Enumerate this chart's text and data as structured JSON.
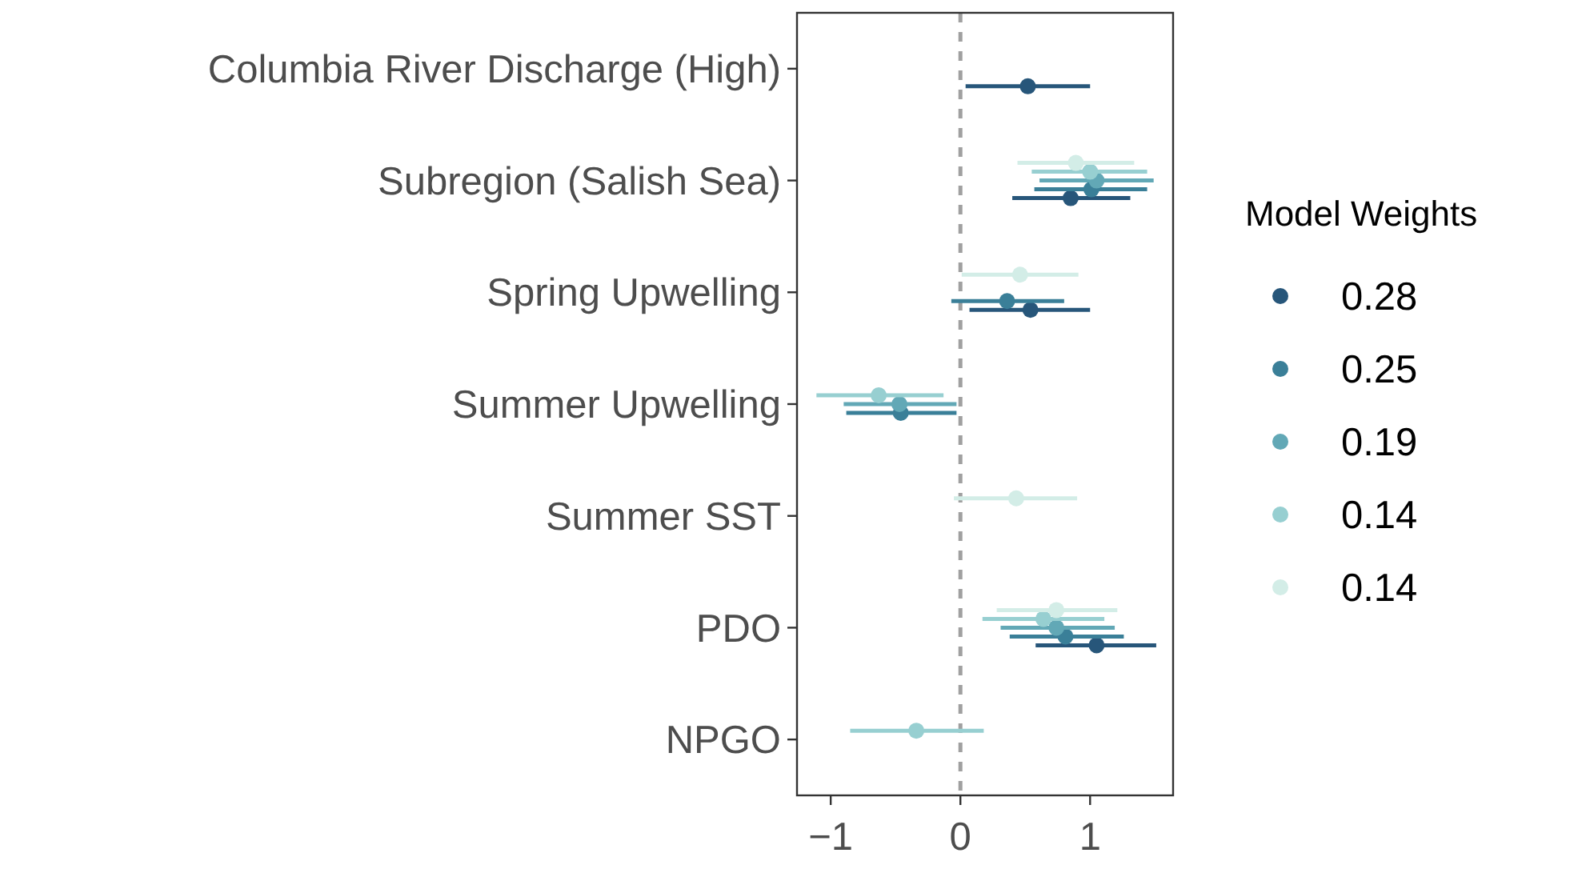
{
  "chart_data": {
    "type": "scatter",
    "orientation": "horizontal",
    "legend_title": "Model Weights",
    "legend": "right",
    "grid": false,
    "marker": "circle",
    "categories": [
      "Columbia River Discharge (High)",
      "Subregion (Salish Sea)",
      "Spring Upwelling",
      "Summer Upwelling",
      "Summer SST",
      "PDO",
      "NPGO"
    ],
    "xlim": [
      -1.26,
      1.64
    ],
    "xticks": [
      {
        "value": -1,
        "label": "−1"
      },
      0,
      1
    ],
    "ref_lines": [
      {
        "axis": "x",
        "value": 0,
        "color": "#a0a0a0",
        "line_style": "dashed"
      }
    ],
    "series": [
      {
        "name": "0.28",
        "color": "#27567a",
        "values": [
          0.52,
          0.85,
          0.54,
          null,
          null,
          1.05,
          null
        ],
        "errors": [
          [
            0.04,
            1.0
          ],
          [
            0.4,
            1.31
          ],
          [
            0.07,
            1.0
          ],
          null,
          null,
          [
            0.58,
            1.51
          ],
          null
        ]
      },
      {
        "name": "0.25",
        "color": "#3a7f98",
        "values": [
          null,
          1.01,
          0.36,
          -0.46,
          null,
          0.81,
          null
        ],
        "errors": [
          null,
          [
            0.57,
            1.44
          ],
          [
            -0.07,
            0.8
          ],
          [
            -0.88,
            -0.03
          ],
          null,
          [
            0.38,
            1.26
          ],
          null
        ]
      },
      {
        "name": "0.19",
        "color": "#62a8b6",
        "values": [
          null,
          1.05,
          null,
          -0.47,
          null,
          0.74,
          null
        ],
        "errors": [
          null,
          [
            0.61,
            1.49
          ],
          null,
          [
            -0.9,
            -0.03
          ],
          null,
          [
            0.31,
            1.19
          ],
          null
        ]
      },
      {
        "name": "0.14",
        "color": "#97cfd1",
        "values": [
          null,
          1.0,
          null,
          -0.63,
          null,
          0.64,
          -0.34
        ],
        "errors": [
          null,
          [
            0.55,
            1.44
          ],
          null,
          [
            -1.11,
            -0.13
          ],
          null,
          [
            0.17,
            1.11
          ],
          [
            -0.85,
            0.18
          ]
        ]
      },
      {
        "name": "0.14",
        "color": "#d3ede7",
        "values": [
          null,
          0.89,
          0.46,
          null,
          0.43,
          0.74,
          null
        ],
        "errors": [
          null,
          [
            0.44,
            1.34
          ],
          [
            0.01,
            0.91
          ],
          null,
          [
            -0.05,
            0.9
          ],
          [
            0.28,
            1.21
          ],
          null
        ]
      }
    ]
  }
}
